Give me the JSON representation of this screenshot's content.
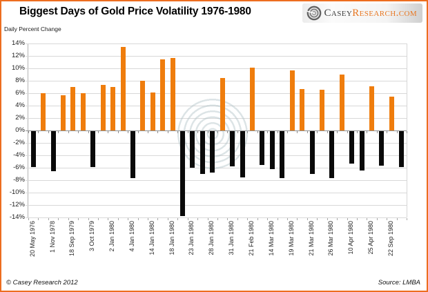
{
  "window": {
    "border_color": "#ED6D1F",
    "background": "#ffffff"
  },
  "header": {
    "title": "Biggest Days of Gold Price Volatility 1976-1980",
    "logo": {
      "icon": "swirl-icon",
      "brand_primary": "Casey",
      "brand_secondary": "Research.com"
    }
  },
  "footer": {
    "copyright": "© Casey Research 2012",
    "source": "Source: LMBA"
  },
  "chart_data": {
    "type": "bar",
    "title": "Biggest Days of Gold Price Volatility 1976-1980",
    "ylabel": "Daily Percent Change",
    "unit": "%",
    "ylim": [
      -14,
      14
    ],
    "ytick_step": 2,
    "ytick_labels": [
      "14%",
      "12%",
      "10%",
      "8%",
      "6%",
      "4%",
      "2%",
      "0%",
      "-2%",
      "-4%",
      "-6%",
      "-8%",
      "-10%",
      "-12%",
      "-14%"
    ],
    "grid": true,
    "legend_position": "none",
    "x_label_interval": 2,
    "positive_color": "#EF7D0D",
    "negative_color": "#0A0A0A",
    "bars": [
      {
        "date": "20 May 1976",
        "value": -5.8
      },
      {
        "date": "",
        "value": 6.0
      },
      {
        "date": "1 Nov 1978",
        "value": -6.4
      },
      {
        "date": "",
        "value": 5.7
      },
      {
        "date": "18 Sep 1979",
        "value": 7.0
      },
      {
        "date": "",
        "value": 6.0
      },
      {
        "date": "3 Oct 1979",
        "value": -5.8
      },
      {
        "date": "",
        "value": 7.3
      },
      {
        "date": "2 Jan 1980",
        "value": 7.0
      },
      {
        "date": "",
        "value": 13.4
      },
      {
        "date": "4 Jan 1980",
        "value": -7.6
      },
      {
        "date": "",
        "value": 8.0
      },
      {
        "date": "14 Jan 1980",
        "value": 6.1
      },
      {
        "date": "",
        "value": 11.4
      },
      {
        "date": "18 Jan 1980",
        "value": 11.7
      },
      {
        "date": "",
        "value": -13.7
      },
      {
        "date": "23 Jan 1980",
        "value": -5.9
      },
      {
        "date": "",
        "value": -6.9
      },
      {
        "date": "28 Jan 1980",
        "value": -6.7
      },
      {
        "date": "",
        "value": 8.4
      },
      {
        "date": "31 Jan 1980",
        "value": -5.7
      },
      {
        "date": "",
        "value": -7.4
      },
      {
        "date": "21 Feb 1980",
        "value": 10.1
      },
      {
        "date": "",
        "value": -5.4
      },
      {
        "date": "14 Mar 1980",
        "value": -6.1
      },
      {
        "date": "",
        "value": -7.6
      },
      {
        "date": "19 Mar 1980",
        "value": 9.7
      },
      {
        "date": "",
        "value": 6.7
      },
      {
        "date": "21 Mar 1980",
        "value": -6.9
      },
      {
        "date": "",
        "value": 6.6
      },
      {
        "date": "26 Mar 1980",
        "value": -7.5
      },
      {
        "date": "",
        "value": 9.0
      },
      {
        "date": "10 Apr 1980",
        "value": -5.2
      },
      {
        "date": "",
        "value": -6.3
      },
      {
        "date": "25 Apr 1980",
        "value": 7.1
      },
      {
        "date": "",
        "value": -5.6
      },
      {
        "date": "22 Sep 1980",
        "value": 5.5
      },
      {
        "date": "",
        "value": -5.8
      }
    ]
  }
}
